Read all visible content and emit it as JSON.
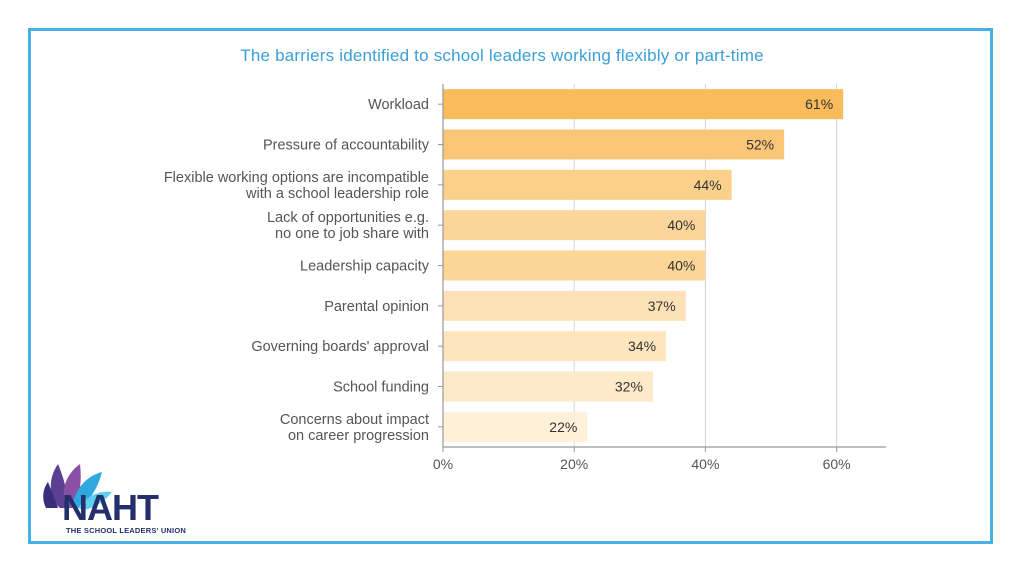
{
  "colors": {
    "frame": "#47b0e6",
    "title": "#3a9fd6",
    "axis": "#999999",
    "grid": "#d4d4d4",
    "bar_shades": [
      "#f9bb5c",
      "#f9c676",
      "#fad08b",
      "#fbd59a",
      "#fbd697",
      "#fde1b6",
      "#fde5be",
      "#fee9c9",
      "#fff0da"
    ],
    "logo_navy": "#23306b"
  },
  "chart_data": {
    "type": "bar",
    "orientation": "horizontal",
    "title": "The barriers identified to school leaders working flexibly or part-time",
    "categories": [
      "Workload",
      "Pressure of accountability",
      "Flexible working options are incompatible\nwith a school leadership role",
      "Lack of opportunities e.g.\nno one to job share with",
      "Leadership capacity",
      "Parental opinion",
      "Governing boards' approval",
      "School funding",
      "Concerns about impact\non career progression"
    ],
    "values": [
      61,
      52,
      44,
      40,
      40,
      37,
      34,
      32,
      22
    ],
    "value_labels": [
      "61%",
      "52%",
      "44%",
      "40%",
      "40%",
      "37%",
      "34%",
      "32%",
      "22%"
    ],
    "xlim": [
      0,
      66
    ],
    "xticks": [
      0,
      20,
      40,
      60
    ],
    "xtick_labels": [
      "0%",
      "20%",
      "40%",
      "60%"
    ],
    "grid": true,
    "xlabel": "",
    "ylabel": ""
  },
  "logo": {
    "text": "NAHT",
    "tagline": "THE SCHOOL LEADERS' UNION",
    "icon": "lotus-petals-icon"
  }
}
